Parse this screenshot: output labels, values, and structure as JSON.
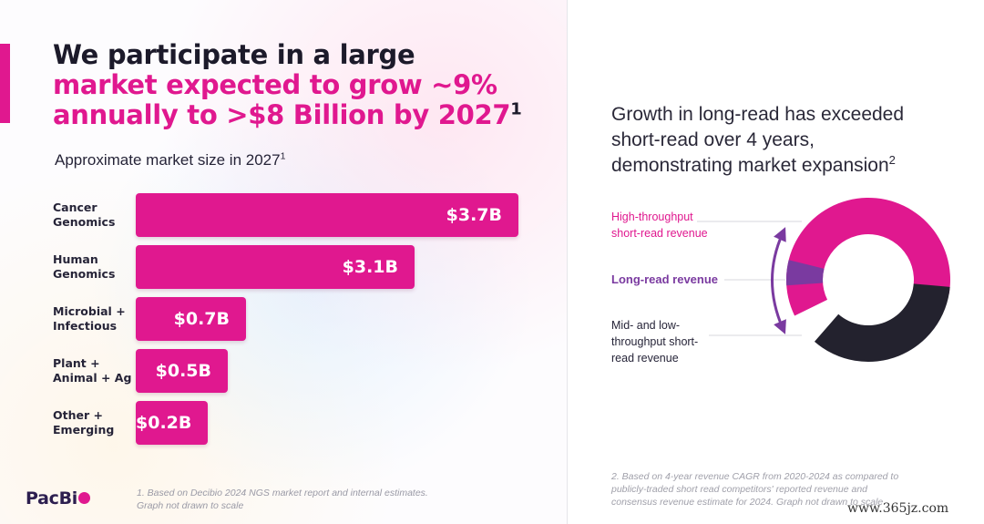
{
  "headline": {
    "line1": "We participate in a large",
    "line2": "market expected to grow ~9%",
    "line3": "annually to >$8 Billion by 2027",
    "sup": "1"
  },
  "left_subtitle": "Approximate market size in 2027",
  "left_subtitle_sup": "1",
  "colors": {
    "accent": "#e0188f",
    "dark": "#262438",
    "purple": "#7a3aa0",
    "dark_segment": "#23222e"
  },
  "chart_data": [
    {
      "type": "bar",
      "orientation": "horizontal",
      "title": "Approximate market size in 2027",
      "categories": [
        "Cancer Genomics",
        "Human Genomics",
        "Microbial + Infectious",
        "Plant + Animal + Ag",
        "Other + Emerging"
      ],
      "category_lines": [
        [
          "Cancer",
          "Genomics"
        ],
        [
          "Human",
          "Genomics"
        ],
        [
          "Microbial +",
          "Infectious"
        ],
        [
          "Plant +",
          "Animal + Ag"
        ],
        [
          "Other +",
          "Emerging"
        ]
      ],
      "values": [
        3.7,
        3.1,
        0.7,
        0.5,
        0.2
      ],
      "value_labels": [
        "$3.7B",
        "$3.1B",
        "$0.7B",
        "$0.5B",
        "$0.2B"
      ],
      "units": "$ Billion",
      "drawn_to_scale": false
    },
    {
      "type": "pie",
      "variant": "donut",
      "labels": [
        "High-throughput short-read revenue",
        "Long-read revenue",
        "Mid- and low-throughput short-read revenue"
      ],
      "values": [
        0.6,
        0.05,
        0.35
      ],
      "colors": [
        "#e0188f",
        "#7a3aa0",
        "#23222e"
      ]
    }
  ],
  "left_footnote": {
    "line1": "1. Based on Decibio 2024 NGS market report and internal estimates.",
    "line2": "Graph not drawn to scale"
  },
  "logo": {
    "text": "PacBi"
  },
  "right_title": {
    "line1": "Growth in long-read has exceeded",
    "line2": "short-read over 4 years,",
    "line3": "demonstrating market expansion",
    "sup": "2"
  },
  "donut_labels": {
    "high": [
      "High-throughput",
      "short-read revenue"
    ],
    "long": "Long-read revenue",
    "mid": [
      "Mid- and low-",
      "throughput short-",
      "read revenue"
    ]
  },
  "right_footnote": {
    "line1": "2. Based on 4-year revenue CAGR from 2020-2024 as compared to",
    "line2": "publicly-traded short read competitors' reported revenue and",
    "line3": "consensus revenue estimate for 2024. Graph not drawn to scale"
  },
  "watermark": "www.365jz.com"
}
